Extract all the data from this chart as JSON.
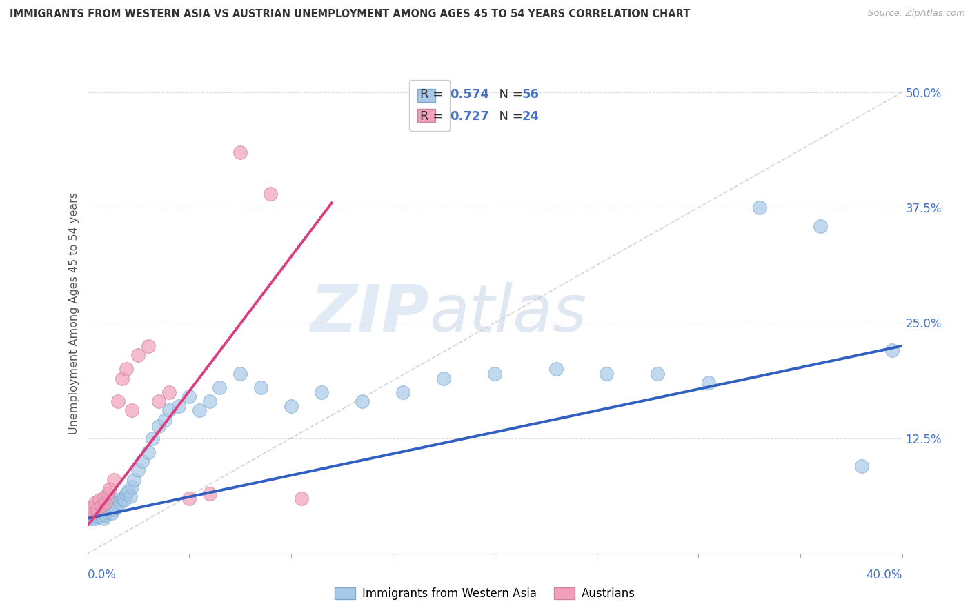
{
  "title": "IMMIGRANTS FROM WESTERN ASIA VS AUSTRIAN UNEMPLOYMENT AMONG AGES 45 TO 54 YEARS CORRELATION CHART",
  "source": "Source: ZipAtlas.com",
  "ylabel": "Unemployment Among Ages 45 to 54 years",
  "xlim": [
    0.0,
    0.4
  ],
  "ylim": [
    0.0,
    0.52
  ],
  "yticks": [
    0.0,
    0.125,
    0.25,
    0.375,
    0.5
  ],
  "ytick_labels": [
    "",
    "12.5%",
    "25.0%",
    "37.5%",
    "50.0%"
  ],
  "color_blue": "#A8C8E8",
  "color_pink": "#F0A0B8",
  "color_blue_line": "#3060C0",
  "color_pink_line": "#D84080",
  "color_gray_line": "#C8C8C8",
  "blue_r": "0.574",
  "blue_n": "56",
  "pink_r": "0.727",
  "pink_n": "24",
  "blue_scatter_x": [
    0.002,
    0.003,
    0.004,
    0.005,
    0.005,
    0.006,
    0.007,
    0.007,
    0.008,
    0.008,
    0.009,
    0.01,
    0.01,
    0.011,
    0.012,
    0.012,
    0.013,
    0.014,
    0.014,
    0.015,
    0.016,
    0.017,
    0.018,
    0.019,
    0.02,
    0.021,
    0.022,
    0.023,
    0.025,
    0.027,
    0.03,
    0.032,
    0.035,
    0.038,
    0.04,
    0.045,
    0.05,
    0.055,
    0.06,
    0.065,
    0.075,
    0.085,
    0.1,
    0.115,
    0.135,
    0.155,
    0.175,
    0.2,
    0.23,
    0.255,
    0.28,
    0.305,
    0.33,
    0.36,
    0.38,
    0.395
  ],
  "blue_scatter_y": [
    0.038,
    0.042,
    0.038,
    0.04,
    0.045,
    0.04,
    0.042,
    0.048,
    0.038,
    0.044,
    0.042,
    0.045,
    0.05,
    0.048,
    0.044,
    0.052,
    0.048,
    0.055,
    0.05,
    0.058,
    0.055,
    0.06,
    0.058,
    0.065,
    0.068,
    0.062,
    0.072,
    0.08,
    0.09,
    0.1,
    0.11,
    0.125,
    0.138,
    0.145,
    0.155,
    0.16,
    0.17,
    0.155,
    0.165,
    0.18,
    0.195,
    0.18,
    0.16,
    0.175,
    0.165,
    0.175,
    0.19,
    0.195,
    0.2,
    0.195,
    0.195,
    0.185,
    0.375,
    0.355,
    0.095,
    0.22
  ],
  "pink_scatter_x": [
    0.002,
    0.003,
    0.004,
    0.005,
    0.006,
    0.007,
    0.008,
    0.009,
    0.01,
    0.011,
    0.013,
    0.015,
    0.017,
    0.019,
    0.022,
    0.025,
    0.03,
    0.035,
    0.04,
    0.05,
    0.06,
    0.075,
    0.09,
    0.105
  ],
  "pink_scatter_y": [
    0.05,
    0.045,
    0.055,
    0.048,
    0.058,
    0.052,
    0.06,
    0.055,
    0.065,
    0.07,
    0.08,
    0.165,
    0.19,
    0.2,
    0.155,
    0.215,
    0.225,
    0.165,
    0.175,
    0.06,
    0.065,
    0.435,
    0.39,
    0.06
  ],
  "blue_trend_x": [
    0.0,
    0.4
  ],
  "blue_trend_y": [
    0.038,
    0.225
  ],
  "pink_trend_x": [
    0.0,
    0.12
  ],
  "pink_trend_y": [
    0.03,
    0.38
  ],
  "gray_trend_x": [
    0.0,
    0.4
  ],
  "gray_trend_y": [
    0.0,
    0.5
  ]
}
